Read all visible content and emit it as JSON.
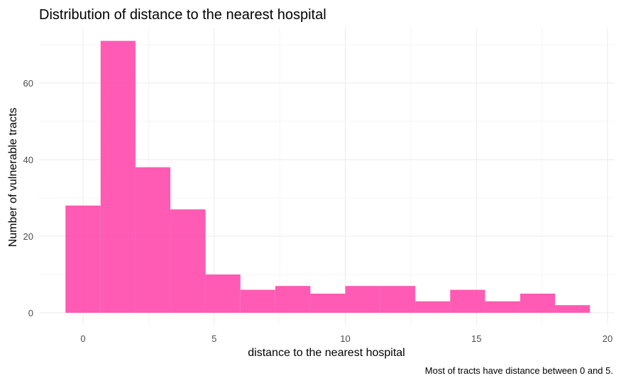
{
  "chart_data": {
    "type": "bar",
    "title": "Distribution of distance to the nearest hospital",
    "xlabel": "distance to the nearest hospital",
    "ylabel": "Number of vulnerable tracts",
    "caption": "Most of tracts have distance between 0 and 5.",
    "bar_color": "#FF4DAE",
    "grid": true,
    "xlim": [
      -2,
      20
    ],
    "ylim": [
      0,
      72
    ],
    "x_ticks": [
      0,
      5,
      10,
      15,
      20
    ],
    "y_ticks": [
      0,
      20,
      40,
      60
    ],
    "bins": [
      {
        "start": -0.67,
        "end": 0.67,
        "value": 28
      },
      {
        "start": 0.67,
        "end": 2.0,
        "value": 71
      },
      {
        "start": 2.0,
        "end": 3.33,
        "value": 38
      },
      {
        "start": 3.33,
        "end": 4.67,
        "value": 27
      },
      {
        "start": 4.67,
        "end": 6.0,
        "value": 10
      },
      {
        "start": 6.0,
        "end": 7.33,
        "value": 6
      },
      {
        "start": 7.33,
        "end": 8.67,
        "value": 7
      },
      {
        "start": 8.67,
        "end": 10.0,
        "value": 5
      },
      {
        "start": 10.0,
        "end": 11.33,
        "value": 7
      },
      {
        "start": 11.33,
        "end": 12.67,
        "value": 7
      },
      {
        "start": 12.67,
        "end": 14.0,
        "value": 3
      },
      {
        "start": 14.0,
        "end": 15.33,
        "value": 6
      },
      {
        "start": 15.33,
        "end": 16.67,
        "value": 3
      },
      {
        "start": 16.67,
        "end": 18.0,
        "value": 5
      },
      {
        "start": 18.0,
        "end": 19.33,
        "value": 2
      }
    ]
  }
}
